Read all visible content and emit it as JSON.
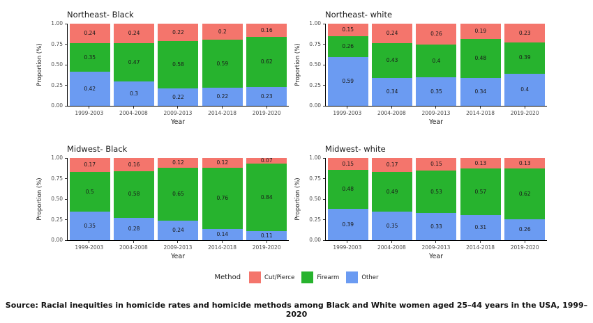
{
  "chart_data": {
    "type": "bar",
    "stacked": true,
    "categories": [
      "1999-2003",
      "2004-2008",
      "2009-2013",
      "2014-2018",
      "2019-2020"
    ],
    "xlabel": "Year",
    "ylabel": "Proportion (%)",
    "ylim": [
      0,
      1
    ],
    "ytick_labels": [
      "0.00",
      "0.25",
      "0.50",
      "0.75",
      "1.00"
    ],
    "grid": false,
    "legend": {
      "title": "Method",
      "position": "bottom",
      "entries": [
        {
          "label": "Cut/Pierce",
          "color": "#F4756C"
        },
        {
          "label": "Firearm",
          "color": "#27B32E"
        },
        {
          "label": "Other",
          "color": "#6B9BF2"
        }
      ]
    },
    "stack_order_bottom_to_top": [
      "Other",
      "Firearm",
      "Cut/Pierce"
    ],
    "panels": [
      {
        "title": "Northeast- Black",
        "series": [
          {
            "name": "Cut/Pierce",
            "values": [
              0.24,
              0.24,
              0.22,
              0.2,
              0.16
            ]
          },
          {
            "name": "Firearm",
            "values": [
              0.35,
              0.47,
              0.58,
              0.59,
              0.62
            ]
          },
          {
            "name": "Other",
            "values": [
              0.42,
              0.3,
              0.22,
              0.22,
              0.23
            ]
          }
        ]
      },
      {
        "title": "Northeast- white",
        "series": [
          {
            "name": "Cut/Pierce",
            "values": [
              0.15,
              0.24,
              0.26,
              0.19,
              0.23
            ]
          },
          {
            "name": "Firearm",
            "values": [
              0.26,
              0.43,
              0.4,
              0.48,
              0.39
            ]
          },
          {
            "name": "Other",
            "values": [
              0.59,
              0.34,
              0.35,
              0.34,
              0.4
            ]
          }
        ]
      },
      {
        "title": "Midwest- Black",
        "series": [
          {
            "name": "Cut/Pierce",
            "values": [
              0.17,
              0.16,
              0.12,
              0.12,
              0.07
            ]
          },
          {
            "name": "Firearm",
            "values": [
              0.5,
              0.58,
              0.65,
              0.76,
              0.84
            ]
          },
          {
            "name": "Other",
            "values": [
              0.35,
              0.28,
              0.24,
              0.14,
              0.11
            ]
          }
        ]
      },
      {
        "title": "Midwest- white",
        "series": [
          {
            "name": "Cut/Pierce",
            "values": [
              0.15,
              0.17,
              0.15,
              0.13,
              0.13
            ]
          },
          {
            "name": "Firearm",
            "values": [
              0.48,
              0.49,
              0.53,
              0.57,
              0.62
            ]
          },
          {
            "name": "Other",
            "values": [
              0.39,
              0.35,
              0.33,
              0.31,
              0.26
            ]
          }
        ]
      }
    ]
  },
  "source": "Source: Racial inequities in homicide rates and homicide methods among Black and White women aged 25–44 years in the USA, 1999–2020"
}
